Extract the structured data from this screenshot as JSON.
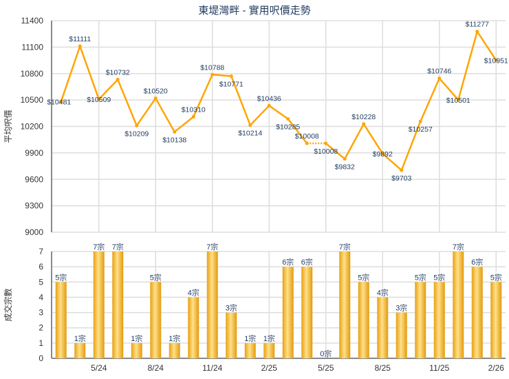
{
  "chart_data": [
    {
      "type": "line",
      "title": "東堤灣畔 - 實用呎價走勢",
      "ylabel": "平均呎價",
      "ylim": [
        9000,
        11400
      ],
      "yticks": [
        9000,
        9300,
        9600,
        9900,
        10200,
        10500,
        10800,
        11100,
        11400
      ],
      "values": [
        10481,
        11111,
        10509,
        10732,
        10209,
        10520,
        10138,
        10310,
        10788,
        10771,
        10214,
        10436,
        10285,
        10008,
        10008,
        9832,
        10228,
        9892,
        9703,
        10257,
        10746,
        10501,
        11277,
        10951
      ],
      "value_prefix": "$",
      "interpolated_points": [
        14
      ],
      "color": "#FFA500",
      "grid": true
    },
    {
      "type": "bar",
      "ylabel": "成交宗數",
      "ylim": [
        0,
        7
      ],
      "yticks": [
        0,
        1,
        2,
        3,
        4,
        5,
        6,
        7
      ],
      "values": [
        5,
        1,
        7,
        7,
        1,
        5,
        1,
        4,
        7,
        3,
        1,
        1,
        6,
        6,
        0,
        7,
        5,
        4,
        3,
        5,
        5,
        7,
        6,
        5
      ],
      "value_suffix": "宗",
      "xtick_labels": [
        {
          "index": 2,
          "label": "5/24"
        },
        {
          "index": 5,
          "label": "8/24"
        },
        {
          "index": 8,
          "label": "11/24"
        },
        {
          "index": 11,
          "label": "2/25"
        },
        {
          "index": 14,
          "label": "5/25"
        },
        {
          "index": 17,
          "label": "8/25"
        },
        {
          "index": 20,
          "label": "11/25"
        },
        {
          "index": 23,
          "label": "2/26"
        }
      ],
      "color": "#F0A81C",
      "grid": true
    }
  ],
  "colors": {
    "label": "#1F3A5F",
    "grid": "#DDDDDD",
    "axis": "#888888"
  }
}
